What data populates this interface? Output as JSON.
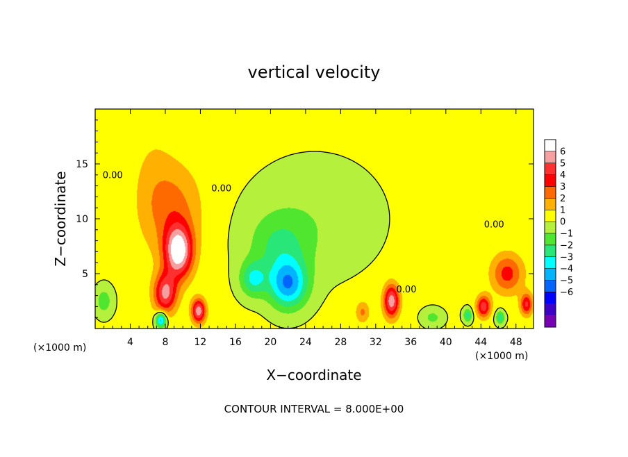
{
  "chart_data": {
    "type": "heatmap",
    "title": "vertical velocity",
    "xlabel": "X−coordinate",
    "ylabel": "Z−coordinate",
    "x_unit_left": "(×1000 m)",
    "x_unit_right": "(×1000 m)",
    "footer": "CONTOUR INTERVAL = 8.000E+00",
    "xlim": [
      0,
      50
    ],
    "ylim": [
      0,
      20
    ],
    "x_ticks": [
      4,
      8,
      12,
      16,
      20,
      24,
      28,
      32,
      36,
      40,
      44,
      48
    ],
    "x_tick_labels": [
      "4",
      "8",
      "12",
      "16",
      "20",
      "24",
      "28",
      "32",
      "36",
      "40",
      "44",
      "48"
    ],
    "y_ticks": [
      5,
      10,
      15
    ],
    "y_tick_labels": [
      "5",
      "10",
      "15"
    ],
    "background_value": 0.2,
    "features": [
      {
        "x": 9.5,
        "z": 7.0,
        "sx": 1.6,
        "sz": 2.4,
        "amp": 6.5
      },
      {
        "x": 8.0,
        "z": 3.2,
        "sx": 1.3,
        "sz": 1.8,
        "amp": 5.0
      },
      {
        "x": 9.0,
        "z": 11.0,
        "sx": 3.2,
        "sz": 4.0,
        "amp": 2.0
      },
      {
        "x": 11.8,
        "z": 1.6,
        "sx": 0.8,
        "sz": 1.1,
        "amp": 5.5
      },
      {
        "x": 6.5,
        "z": 13.0,
        "sx": 2.5,
        "sz": 6.0,
        "amp": 0.8
      },
      {
        "x": 7.5,
        "z": 0.8,
        "sx": 0.6,
        "sz": 0.7,
        "amp": -5.0
      },
      {
        "x": 1.0,
        "z": 2.5,
        "sx": 1.0,
        "sz": 1.3,
        "amp": -1.8
      },
      {
        "x": 18.0,
        "z": 4.5,
        "sx": 1.5,
        "sz": 1.6,
        "amp": -3.0
      },
      {
        "x": 22.0,
        "z": 4.0,
        "sx": 2.2,
        "sz": 2.2,
        "amp": -4.8
      },
      {
        "x": 21.0,
        "z": 7.5,
        "sx": 3.5,
        "sz": 3.0,
        "amp": -2.0
      },
      {
        "x": 25.0,
        "z": 10.0,
        "sx": 7.0,
        "sz": 5.0,
        "amp": -0.9
      },
      {
        "x": 33.8,
        "z": 2.5,
        "sx": 0.9,
        "sz": 1.5,
        "amp": 5.5
      },
      {
        "x": 30.5,
        "z": 1.5,
        "sx": 0.8,
        "sz": 1.0,
        "amp": 2.0
      },
      {
        "x": 47.0,
        "z": 5.0,
        "sx": 1.8,
        "sz": 1.8,
        "amp": 3.2
      },
      {
        "x": 44.3,
        "z": 2.0,
        "sx": 0.8,
        "sz": 1.0,
        "amp": 4.5
      },
      {
        "x": 49.2,
        "z": 2.2,
        "sx": 0.7,
        "sz": 1.0,
        "amp": 4.0
      },
      {
        "x": 46.2,
        "z": 1.0,
        "sx": 0.5,
        "sz": 0.6,
        "amp": -3.0
      },
      {
        "x": 42.5,
        "z": 1.2,
        "sx": 0.5,
        "sz": 0.6,
        "amp": -3.0
      },
      {
        "x": 38.5,
        "z": 1.0,
        "sx": 1.2,
        "sz": 0.8,
        "amp": -1.5
      }
    ],
    "colorbar": {
      "levels": [
        6,
        5,
        4,
        3,
        2,
        1,
        0,
        -1,
        -2,
        -3,
        -4,
        -5,
        -6
      ],
      "labels": [
        "6",
        "5",
        "4",
        "3",
        "2",
        "1",
        "0",
        "−1",
        "−2",
        "−3",
        "−4",
        "−5",
        "−6"
      ],
      "colors": [
        "#ffffff",
        "#f5a0a0",
        "#ff3030",
        "#ff0000",
        "#ff6a00",
        "#ffb000",
        "#ffff00",
        "#b5f03c",
        "#50e630",
        "#28e678",
        "#00ffff",
        "#00b4ff",
        "#0064ff",
        "#0000ff",
        "#3c00c8",
        "#7800b4"
      ]
    },
    "contour_labels": [
      {
        "text": "0.00",
        "x": 2.0,
        "z": 13.7
      },
      {
        "text": "0.00",
        "x": 14.4,
        "z": 12.5
      },
      {
        "text": "0.00",
        "x": 45.5,
        "z": 9.2
      },
      {
        "text": "0.00",
        "x": 35.5,
        "z": 3.3
      }
    ]
  }
}
